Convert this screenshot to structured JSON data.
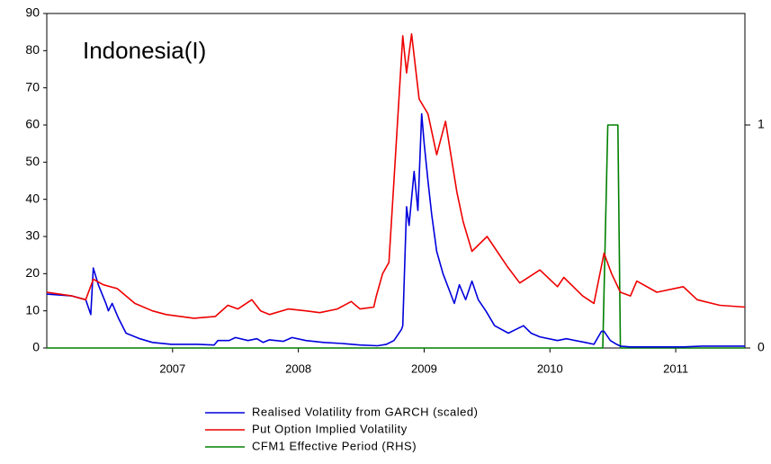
{
  "chart_data": {
    "type": "line",
    "title": "Indonesia(I)",
    "xlim": [
      2006,
      2011.55
    ],
    "xticks": [
      2007,
      2008,
      2009,
      2010,
      2011
    ],
    "ylim": [
      0,
      90
    ],
    "yticks": [
      0,
      10,
      20,
      30,
      40,
      50,
      60,
      70,
      80,
      90
    ],
    "y2lim": [
      0,
      1.5
    ],
    "y2ticks": [
      0,
      1
    ],
    "series": [
      {
        "name": "Realised Volatility from GARCH (scaled)",
        "color": "#0000dd",
        "x": [
          2006.0,
          2006.2,
          2006.31,
          2006.35,
          2006.37,
          2006.41,
          2006.47,
          2006.49,
          2006.52,
          2006.57,
          2006.63,
          2006.74,
          2006.84,
          2006.99,
          2007.2,
          2007.33,
          2007.36,
          2007.45,
          2007.5,
          2007.6,
          2007.67,
          2007.72,
          2007.77,
          2007.88,
          2007.95,
          2008.06,
          2008.2,
          2008.35,
          2008.49,
          2008.63,
          2008.7,
          2008.76,
          2008.82,
          2008.83,
          2008.86,
          2008.88,
          2008.92,
          2008.95,
          2008.98,
          2009.0,
          2009.03,
          2009.06,
          2009.1,
          2009.15,
          2009.24,
          2009.28,
          2009.33,
          2009.38,
          2009.43,
          2009.49,
          2009.56,
          2009.67,
          2009.73,
          2009.79,
          2009.85,
          2009.92,
          2010.06,
          2010.13,
          2010.28,
          2010.35,
          2010.41,
          2010.43,
          2010.48,
          2010.53,
          2010.56,
          2010.64,
          2011.06,
          2011.21,
          2011.55
        ],
        "values": [
          14.5,
          14,
          13,
          9,
          21.5,
          17,
          12,
          10,
          12,
          8,
          4,
          2.5,
          1.5,
          1,
          1,
          0.8,
          2,
          2,
          2.8,
          2,
          2.5,
          1.5,
          2.2,
          1.8,
          2.8,
          2,
          1.5,
          1.2,
          0.8,
          0.6,
          1,
          2,
          5,
          6,
          38,
          33,
          47.5,
          37,
          63,
          55,
          45,
          36,
          26,
          20,
          12,
          17,
          13,
          18,
          13,
          10,
          6,
          4,
          5,
          6,
          4,
          3,
          2,
          2.5,
          1.5,
          1,
          4.5,
          4.5,
          2,
          1,
          0.5,
          0.3,
          0.3,
          0.5,
          0.5
        ]
      },
      {
        "name": "Put Option Implied Volatility",
        "color": "#ee0000",
        "x": [
          2006.0,
          2006.2,
          2006.31,
          2006.37,
          2006.45,
          2006.56,
          2006.7,
          2006.84,
          2006.95,
          2007.17,
          2007.34,
          2007.44,
          2007.52,
          2007.63,
          2007.7,
          2007.77,
          2007.92,
          2008.06,
          2008.17,
          2008.31,
          2008.42,
          2008.49,
          2008.6,
          2008.62,
          2008.67,
          2008.72,
          2008.76,
          2008.83,
          2008.86,
          2008.9,
          2008.96,
          2009.03,
          2009.1,
          2009.17,
          2009.26,
          2009.31,
          2009.38,
          2009.5,
          2009.66,
          2009.76,
          2009.92,
          2010.06,
          2010.11,
          2010.26,
          2010.35,
          2010.43,
          2010.49,
          2010.56,
          2010.64,
          2010.69,
          2010.85,
          2011.06,
          2011.17,
          2011.35,
          2011.55
        ],
        "values": [
          15,
          14,
          13,
          18.5,
          17,
          16,
          12,
          10,
          9,
          8,
          8.5,
          11.5,
          10.5,
          13,
          10,
          9,
          10.5,
          10,
          9.5,
          10.5,
          12.5,
          10.5,
          11,
          14,
          20,
          23,
          45,
          84,
          74,
          84.5,
          67,
          63,
          52,
          61,
          42,
          34,
          26,
          30,
          22,
          17.5,
          21,
          16.5,
          19,
          14,
          12,
          25.5,
          20,
          15,
          14,
          18,
          15,
          16.5,
          13,
          11.5,
          11
        ]
      },
      {
        "name": "CFM1 Effective Period (RHS)",
        "color": "#008000",
        "axis": "y2",
        "x": [
          2006.0,
          2010.42,
          2010.46,
          2010.54,
          2010.56,
          2011.55
        ],
        "values": [
          0,
          0,
          1,
          1,
          0,
          0
        ]
      }
    ]
  }
}
